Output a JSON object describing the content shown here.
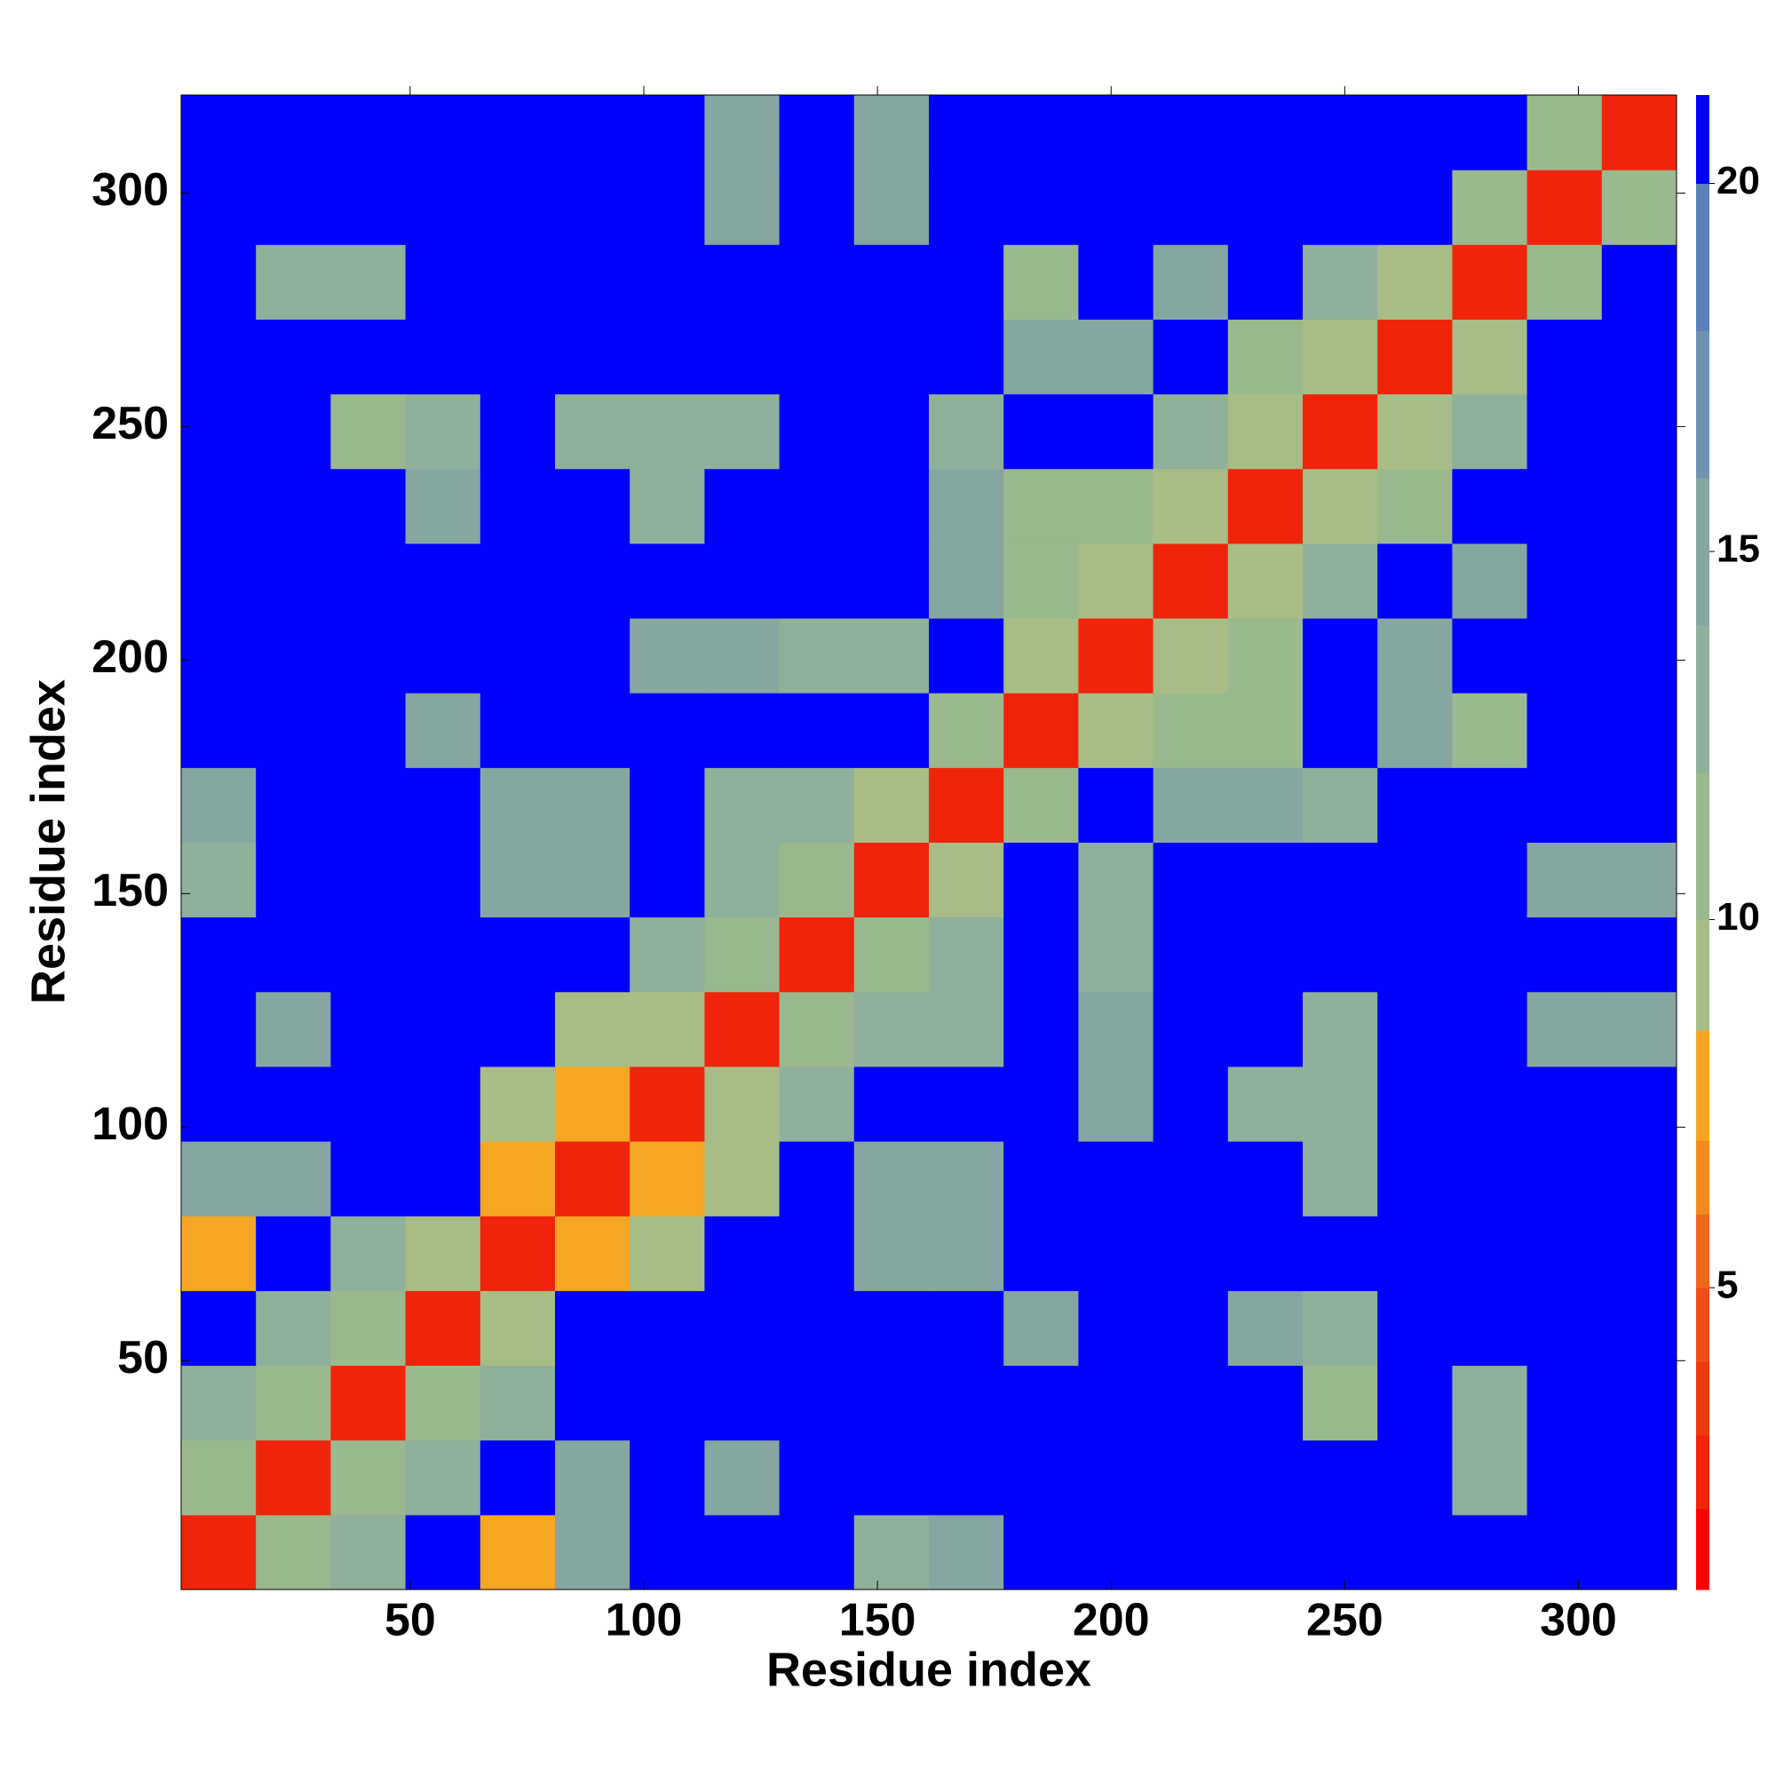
{
  "chart_data": {
    "type": "heatmap",
    "x_label": "Residue index",
    "y_label": "Residue index",
    "x": [
      9,
      25,
      41,
      57,
      73,
      89,
      105,
      121,
      137,
      153,
      169,
      185,
      201,
      217,
      233,
      249,
      265,
      281,
      297,
      313
    ],
    "y": [
      9,
      25,
      41,
      57,
      73,
      89,
      105,
      121,
      137,
      153,
      169,
      185,
      201,
      217,
      233,
      249,
      265,
      281,
      297,
      313
    ],
    "z": [
      [
        3,
        11,
        14,
        21,
        8,
        15,
        21,
        21,
        21,
        14,
        15,
        21,
        21,
        21,
        21,
        21,
        21,
        21,
        21,
        21
      ],
      [
        11,
        3,
        11,
        14,
        21,
        16,
        21,
        16,
        21,
        21,
        21,
        21,
        21,
        21,
        21,
        21,
        21,
        14,
        21,
        21
      ],
      [
        14,
        11,
        3,
        11,
        14,
        21,
        21,
        21,
        21,
        21,
        21,
        21,
        21,
        21,
        21,
        12,
        21,
        14,
        21,
        21
      ],
      [
        21,
        14,
        11,
        3,
        10,
        21,
        21,
        21,
        21,
        21,
        21,
        16,
        21,
        21,
        15,
        13,
        21,
        21,
        21,
        21
      ],
      [
        8,
        21,
        14,
        10,
        3,
        8,
        9,
        21,
        21,
        15,
        16,
        21,
        21,
        21,
        21,
        21,
        21,
        21,
        21,
        21
      ],
      [
        15,
        16,
        21,
        21,
        8,
        3,
        8,
        9,
        21,
        15,
        16,
        21,
        21,
        21,
        21,
        14,
        21,
        21,
        21,
        21
      ],
      [
        21,
        21,
        21,
        21,
        9,
        8,
        3,
        9,
        13,
        21,
        21,
        21,
        16,
        21,
        13,
        13,
        21,
        21,
        21,
        21
      ],
      [
        21,
        16,
        21,
        21,
        21,
        9,
        9,
        3,
        11,
        14,
        13,
        21,
        16,
        21,
        21,
        14,
        21,
        21,
        16,
        16
      ],
      [
        21,
        21,
        21,
        21,
        21,
        21,
        13,
        11,
        3,
        11,
        13,
        21,
        14,
        21,
        21,
        21,
        21,
        21,
        21,
        21
      ],
      [
        14,
        21,
        21,
        21,
        15,
        15,
        21,
        14,
        11,
        3,
        10,
        21,
        14,
        21,
        21,
        21,
        21,
        21,
        15,
        15
      ],
      [
        15,
        21,
        21,
        21,
        16,
        16,
        21,
        13,
        13,
        10,
        3,
        11,
        21,
        15,
        15,
        14,
        21,
        21,
        21,
        21
      ],
      [
        21,
        21,
        21,
        16,
        21,
        21,
        21,
        21,
        21,
        21,
        11,
        3,
        10,
        12,
        12,
        21,
        15,
        11,
        21,
        21
      ],
      [
        21,
        21,
        21,
        21,
        21,
        21,
        16,
        16,
        14,
        14,
        21,
        10,
        3,
        9,
        12,
        21,
        15,
        21,
        21,
        21
      ],
      [
        21,
        21,
        21,
        21,
        21,
        21,
        21,
        21,
        21,
        21,
        15,
        12,
        9,
        3,
        10,
        13,
        21,
        16,
        21,
        21
      ],
      [
        21,
        21,
        21,
        15,
        21,
        21,
        13,
        21,
        21,
        21,
        15,
        12,
        12,
        10,
        3,
        9,
        12,
        21,
        21,
        21
      ],
      [
        21,
        21,
        12,
        13,
        21,
        14,
        13,
        14,
        21,
        21,
        14,
        21,
        21,
        13,
        9,
        3,
        10,
        14,
        21,
        21
      ],
      [
        21,
        21,
        21,
        21,
        21,
        21,
        21,
        21,
        21,
        21,
        21,
        15,
        15,
        21,
        12,
        10,
        3,
        9,
        21,
        21
      ],
      [
        21,
        14,
        14,
        21,
        21,
        21,
        21,
        21,
        21,
        21,
        21,
        11,
        21,
        16,
        21,
        14,
        9,
        3,
        11,
        21
      ],
      [
        21,
        21,
        21,
        21,
        21,
        21,
        21,
        16,
        21,
        15,
        21,
        21,
        21,
        21,
        21,
        21,
        21,
        11,
        3,
        12
      ],
      [
        21,
        21,
        21,
        21,
        21,
        21,
        21,
        16,
        21,
        15,
        21,
        21,
        21,
        21,
        21,
        21,
        21,
        21,
        12,
        3
      ]
    ],
    "xlim": [
      1,
      321
    ],
    "ylim": [
      1,
      321
    ],
    "xticks": [
      50,
      100,
      150,
      200,
      250,
      300
    ],
    "yticks": [
      50,
      100,
      150,
      200,
      250,
      300
    ],
    "zlim": [
      0.9,
      21.2
    ],
    "zticks": [
      5,
      10,
      15,
      20
    ],
    "color_levels": [
      2,
      3,
      4,
      5,
      6,
      7,
      8.5,
      10,
      12,
      14,
      16,
      18,
      20,
      21.2
    ],
    "colors": [
      "#ff0000",
      "#f0240a",
      "#ee3a10",
      "#f04e18",
      "#f2661c",
      "#f58a1a",
      "#f5a623",
      "#a8bd86",
      "#9bb98e",
      "#8fb09a",
      "#86a6a2",
      "#6f94b2",
      "#5b82b6",
      "#0000ff"
    ]
  }
}
